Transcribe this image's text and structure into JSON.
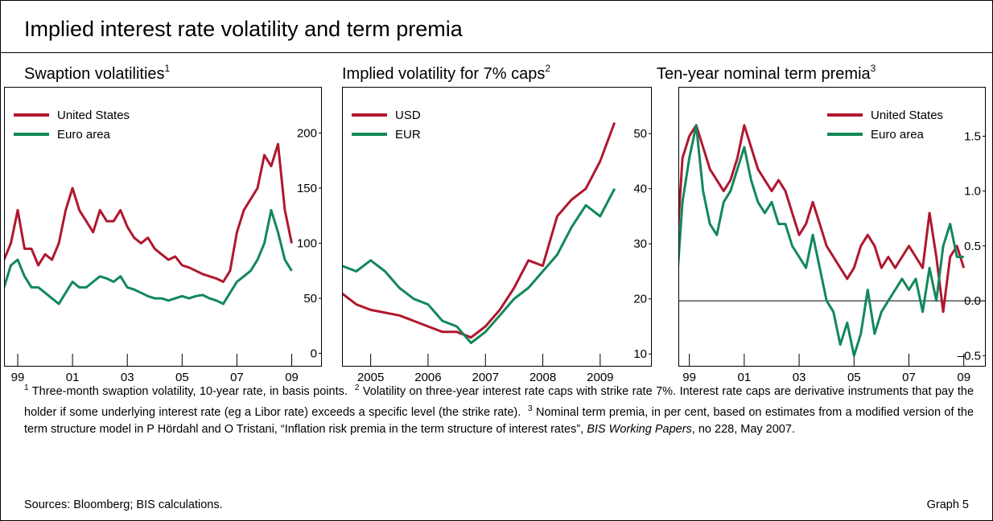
{
  "header": {
    "title": "Implied interest rate volatility and term premia"
  },
  "chart_data": [
    {
      "type": "line",
      "title": "Swaption volatilities",
      "title_note": "1",
      "legend": "upper left",
      "x": [
        1999,
        1999.25,
        1999.5,
        1999.75,
        2000,
        2000.25,
        2000.5,
        2000.75,
        2001,
        2001.25,
        2001.5,
        2001.75,
        2002,
        2002.25,
        2002.5,
        2002.75,
        2003,
        2003.25,
        2003.5,
        2003.75,
        2004,
        2004.25,
        2004.5,
        2004.75,
        2005,
        2005.25,
        2005.5,
        2005.75,
        2006,
        2006.25,
        2006.5,
        2006.75,
        2007,
        2007.25,
        2007.5,
        2007.75,
        2008,
        2008.25,
        2008.5,
        2008.75,
        2009,
        2009.25,
        2009.5
      ],
      "series": [
        {
          "name": "United States",
          "color": "#b0172e",
          "values": [
            85,
            100,
            130,
            95,
            95,
            80,
            90,
            85,
            100,
            130,
            150,
            130,
            120,
            110,
            130,
            120,
            120,
            130,
            115,
            105,
            100,
            105,
            95,
            90,
            85,
            88,
            80,
            78,
            75,
            72,
            70,
            68,
            65,
            75,
            110,
            130,
            140,
            150,
            180,
            170,
            190,
            130,
            100
          ]
        },
        {
          "name": "Euro area",
          "color": "#12885a",
          "values": [
            60,
            80,
            85,
            70,
            60,
            60,
            55,
            50,
            45,
            55,
            65,
            60,
            60,
            65,
            70,
            68,
            65,
            70,
            60,
            58,
            55,
            52,
            50,
            50,
            48,
            50,
            52,
            50,
            52,
            53,
            50,
            48,
            45,
            55,
            65,
            70,
            75,
            85,
            100,
            130,
            110,
            85,
            75
          ]
        }
      ],
      "xlim": [
        1999,
        2010.6
      ],
      "ylim": [
        -12,
        242
      ],
      "xticks": [
        {
          "value": 1999.5,
          "label": "99"
        },
        {
          "value": 2001.5,
          "label": "01"
        },
        {
          "value": 2003.5,
          "label": "03"
        },
        {
          "value": 2005.5,
          "label": "05"
        },
        {
          "value": 2007.5,
          "label": "07"
        },
        {
          "value": 2009.5,
          "label": "09"
        }
      ],
      "yticks": [
        0,
        50,
        100,
        150,
        200
      ]
    },
    {
      "type": "line",
      "title": "Implied volatility for 7% caps",
      "title_note": "2",
      "legend": "upper left",
      "x": [
        2005,
        2005.25,
        2005.5,
        2005.75,
        2006,
        2006.25,
        2006.5,
        2006.75,
        2007,
        2007.25,
        2007.5,
        2007.75,
        2008,
        2008.25,
        2008.5,
        2008.75,
        2009,
        2009.25,
        2009.5,
        2009.75
      ],
      "series": [
        {
          "name": "USD",
          "color": "#b0172e",
          "values": [
            21,
            19,
            18,
            17.5,
            17,
            16,
            15,
            14,
            14,
            13,
            15,
            18,
            22,
            27,
            26,
            35,
            38,
            40,
            45,
            52
          ]
        },
        {
          "name": "EUR",
          "color": "#12885a",
          "values": [
            26,
            25,
            27,
            25,
            22,
            20,
            19,
            16,
            15,
            12,
            14,
            17,
            20,
            22,
            25,
            28,
            33,
            37,
            35,
            40
          ]
        }
      ],
      "xlim": [
        2005,
        2010.4
      ],
      "ylim": [
        7.7,
        58.5
      ],
      "xticks": [
        {
          "value": 2005.5,
          "label": "2005"
        },
        {
          "value": 2006.5,
          "label": "2006"
        },
        {
          "value": 2007.5,
          "label": "2007"
        },
        {
          "value": 2008.5,
          "label": "2008"
        },
        {
          "value": 2009.5,
          "label": "2009"
        }
      ],
      "yticks": [
        10,
        20,
        30,
        40,
        50
      ]
    },
    {
      "type": "line",
      "title": "Ten-year nominal term premia",
      "title_note": "3",
      "legend": "upper right",
      "zero_line": true,
      "x": [
        1999,
        1999.25,
        1999.5,
        1999.75,
        2000,
        2000.25,
        2000.5,
        2000.75,
        2001,
        2001.25,
        2001.5,
        2001.75,
        2002,
        2002.25,
        2002.5,
        2002.75,
        2003,
        2003.25,
        2003.5,
        2003.75,
        2004,
        2004.25,
        2004.5,
        2004.75,
        2005,
        2005.25,
        2005.5,
        2005.75,
        2006,
        2006.25,
        2006.5,
        2006.75,
        2007,
        2007.25,
        2007.5,
        2007.75,
        2008,
        2008.25,
        2008.5,
        2008.75,
        2009,
        2009.25,
        2009.5
      ],
      "series": [
        {
          "name": "United States",
          "color": "#b0172e",
          "values": [
            0.3,
            1.3,
            1.5,
            1.6,
            1.4,
            1.2,
            1.1,
            1.0,
            1.1,
            1.3,
            1.6,
            1.4,
            1.2,
            1.1,
            1.0,
            1.1,
            1.0,
            0.8,
            0.6,
            0.7,
            0.9,
            0.7,
            0.5,
            0.4,
            0.3,
            0.2,
            0.3,
            0.5,
            0.6,
            0.5,
            0.3,
            0.4,
            0.3,
            0.4,
            0.5,
            0.4,
            0.3,
            0.8,
            0.4,
            -0.1,
            0.4,
            0.5,
            0.3
          ]
        },
        {
          "name": "Euro area",
          "color": "#12885a",
          "values": [
            0.0,
            0.9,
            1.3,
            1.6,
            1.0,
            0.7,
            0.6,
            0.9,
            1.0,
            1.2,
            1.4,
            1.1,
            0.9,
            0.8,
            0.9,
            0.7,
            0.7,
            0.5,
            0.4,
            0.3,
            0.6,
            0.3,
            0.0,
            -0.1,
            -0.4,
            -0.2,
            -0.5,
            -0.3,
            0.1,
            -0.3,
            -0.1,
            0.0,
            0.1,
            0.2,
            0.1,
            0.2,
            -0.1,
            0.3,
            0.0,
            0.5,
            0.7,
            0.4,
            0.4
          ]
        }
      ],
      "xlim": [
        1999.1,
        2010.3
      ],
      "ylim": [
        -0.6,
        1.95
      ],
      "xticks": [
        {
          "value": 1999.5,
          "label": "99"
        },
        {
          "value": 2001.5,
          "label": "01"
        },
        {
          "value": 2003.5,
          "label": "03"
        },
        {
          "value": 2005.5,
          "label": "05"
        },
        {
          "value": 2007.5,
          "label": "07"
        },
        {
          "value": 2009.5,
          "label": "09"
        }
      ],
      "yticks": [
        {
          "value": -0.5,
          "label": "–0.5"
        },
        {
          "value": 0,
          "label": "0.0"
        },
        0.5,
        {
          "value": 1,
          "label": "1.0"
        },
        1.5
      ]
    }
  ],
  "footnotes": [
    {
      "marker": "1",
      "text": "Three-month swaption volatility, 10-year rate, in basis points."
    },
    {
      "marker": "2",
      "text": "Volatility on three-year interest rate caps with strike rate 7%. Interest rate caps are derivative instruments that pay the holder if some underlying interest rate (eg a Libor rate) exceeds a specific level (the strike rate)."
    },
    {
      "marker": "3",
      "text": "Nominal term premia, in per cent, based on estimates from a modified version of the term structure model in P Hördahl and O Tristani, “Inflation risk premia in the term structure of interest rates”,",
      "italic": "BIS Working Papers",
      "text_after": ", no 228, May 2007."
    }
  ],
  "sources": "Sources: Bloomberg; BIS calculations.",
  "graph_label": "Graph 5"
}
